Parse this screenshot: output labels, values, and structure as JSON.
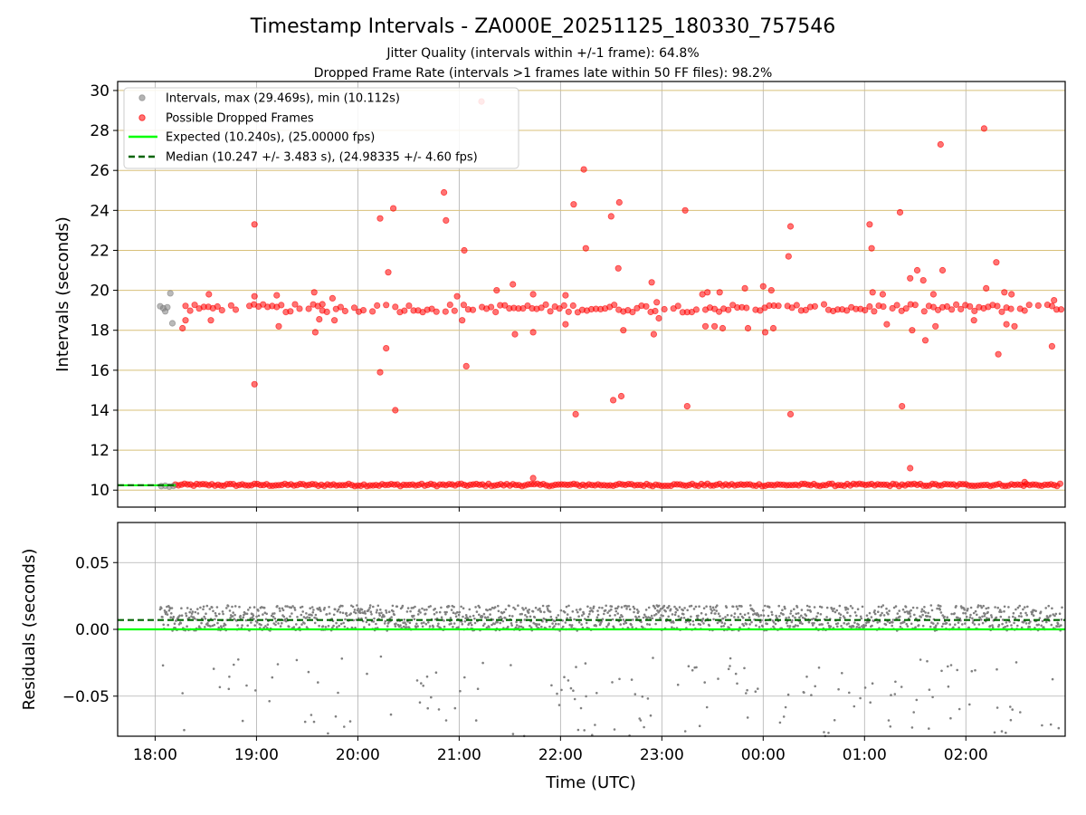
{
  "chart_data": {
    "type": "scatter",
    "title": "Timestamp Intervals - ZA000E_20251125_180330_757546",
    "subtitle_lines": [
      "Jitter Quality (intervals within +/-1 frame): 64.8%",
      "Dropped Frame Rate (intervals >1 frames late within 50 FF files): 98.2%"
    ],
    "xlabel": "Time (UTC)",
    "x_ticks": [
      "18:00",
      "19:00",
      "20:00",
      "21:00",
      "22:00",
      "23:00",
      "00:00",
      "01:00",
      "02:00"
    ],
    "x_range_hours": [
      17.63,
      26.98
    ],
    "colors": {
      "intervals": "#808080",
      "dropped": "#ff0000",
      "expected": "#00ff00",
      "median": "#006400",
      "gridline_y_top": "#d8c07a",
      "grid": "#b0b0b0"
    },
    "panels": [
      {
        "id": "intervals",
        "ylabel": "Intervals (seconds)",
        "ylim": [
          9.15,
          30.45
        ],
        "y_ticks": [
          10,
          12,
          14,
          16,
          18,
          20,
          22,
          24,
          26,
          28,
          30
        ],
        "legend": {
          "position": "upper-left",
          "entries": [
            {
              "label": "Intervals, max (29.469s), min (10.112s)",
              "marker": "dot",
              "color": "#808080"
            },
            {
              "label": "Possible Dropped Frames",
              "marker": "dot",
              "color": "#ff0000"
            },
            {
              "label": "Expected (10.240s), (25.00000 fps)",
              "marker": "line",
              "color": "#00ff00"
            },
            {
              "label": "Median (10.247 +/- 3.483 s), (24.98335 +/- 4.60 fps)",
              "marker": "dashed",
              "color": "#006400"
            }
          ]
        },
        "expected_value": 10.24,
        "median_value": 10.247,
        "series": [
          {
            "name": "Intervals, max (29.469s), min (10.112s)",
            "points": [
              [
                18.05,
                19.2
              ],
              [
                18.08,
                19.1
              ],
              [
                18.1,
                18.95
              ],
              [
                18.12,
                19.15
              ],
              [
                18.15,
                19.85
              ],
              [
                18.17,
                18.35
              ],
              [
                18.06,
                10.2
              ],
              [
                18.1,
                10.22
              ],
              [
                18.14,
                10.18
              ],
              [
                18.18,
                10.21
              ]
            ]
          },
          {
            "name": "Possible Dropped Frames",
            "points": [
              [
                18.27,
                18.1
              ],
              [
                18.3,
                18.5
              ],
              [
                18.53,
                19.8
              ],
              [
                18.55,
                18.5
              ],
              [
                18.98,
                23.3
              ],
              [
                18.98,
                19.7
              ],
              [
                18.98,
                15.3
              ],
              [
                19.2,
                19.75
              ],
              [
                19.22,
                18.2
              ],
              [
                19.57,
                19.9
              ],
              [
                19.58,
                17.9
              ],
              [
                19.62,
                18.55
              ],
              [
                19.65,
                19.3
              ],
              [
                19.75,
                19.6
              ],
              [
                19.77,
                18.5
              ],
              [
                20.22,
                23.6
              ],
              [
                20.22,
                15.9
              ],
              [
                20.28,
                17.1
              ],
              [
                20.3,
                20.9
              ],
              [
                20.35,
                24.1
              ],
              [
                20.37,
                14.0
              ],
              [
                20.85,
                24.9
              ],
              [
                20.87,
                23.5
              ],
              [
                20.98,
                19.7
              ],
              [
                21.03,
                18.5
              ],
              [
                21.05,
                22.0
              ],
              [
                21.07,
                16.2
              ],
              [
                21.22,
                29.45
              ],
              [
                21.37,
                20.0
              ],
              [
                21.53,
                20.3
              ],
              [
                21.55,
                17.8
              ],
              [
                21.73,
                19.8
              ],
              [
                21.73,
                17.9
              ],
              [
                21.73,
                10.6
              ],
              [
                22.05,
                19.75
              ],
              [
                22.05,
                18.3
              ],
              [
                22.13,
                24.3
              ],
              [
                22.15,
                13.8
              ],
              [
                22.23,
                26.05
              ],
              [
                22.25,
                22.1
              ],
              [
                22.5,
                23.7
              ],
              [
                22.52,
                14.5
              ],
              [
                22.57,
                21.1
              ],
              [
                22.58,
                24.4
              ],
              [
                22.6,
                14.7
              ],
              [
                22.62,
                18.0
              ],
              [
                22.9,
                20.4
              ],
              [
                22.92,
                17.8
              ],
              [
                22.95,
                19.4
              ],
              [
                22.97,
                18.6
              ],
              [
                23.23,
                24.0
              ],
              [
                23.25,
                14.2
              ],
              [
                23.4,
                19.8
              ],
              [
                23.43,
                18.2
              ],
              [
                23.45,
                19.9
              ],
              [
                23.52,
                18.2
              ],
              [
                23.57,
                19.9
              ],
              [
                23.6,
                18.1
              ],
              [
                23.82,
                20.1
              ],
              [
                23.85,
                18.1
              ],
              [
                24.0,
                20.2
              ],
              [
                24.02,
                17.9
              ],
              [
                24.08,
                20.0
              ],
              [
                24.1,
                18.1
              ],
              [
                24.25,
                21.7
              ],
              [
                24.27,
                23.2
              ],
              [
                24.27,
                13.8
              ],
              [
                25.05,
                23.3
              ],
              [
                25.07,
                22.1
              ],
              [
                25.08,
                19.9
              ],
              [
                25.18,
                19.8
              ],
              [
                25.22,
                18.3
              ],
              [
                25.45,
                20.6
              ],
              [
                25.52,
                21.0
              ],
              [
                25.35,
                23.9
              ],
              [
                25.37,
                14.2
              ],
              [
                25.45,
                11.1
              ],
              [
                25.47,
                18.0
              ],
              [
                25.58,
                20.5
              ],
              [
                25.6,
                17.5
              ],
              [
                25.68,
                19.8
              ],
              [
                25.7,
                18.2
              ],
              [
                25.75,
                27.3
              ],
              [
                25.77,
                21.0
              ],
              [
                26.08,
                18.5
              ],
              [
                26.18,
                28.1
              ],
              [
                26.2,
                20.1
              ],
              [
                26.3,
                21.4
              ],
              [
                26.32,
                16.8
              ],
              [
                26.38,
                19.9
              ],
              [
                26.4,
                18.3
              ],
              [
                26.45,
                19.8
              ],
              [
                26.48,
                18.2
              ],
              [
                26.58,
                10.4
              ],
              [
                26.85,
                17.2
              ],
              [
                26.87,
                19.5
              ]
            ]
          }
        ]
      },
      {
        "id": "residuals",
        "ylabel": "Residuals (seconds)",
        "ylim": [
          -0.08,
          0.08
        ],
        "y_ticks": [
          0.05,
          0.0,
          -0.05
        ],
        "y_tick_labels": [
          "0.05",
          "0.00",
          "−0.05"
        ],
        "expected_value": 0.0,
        "median_value": 0.007
      }
    ]
  }
}
